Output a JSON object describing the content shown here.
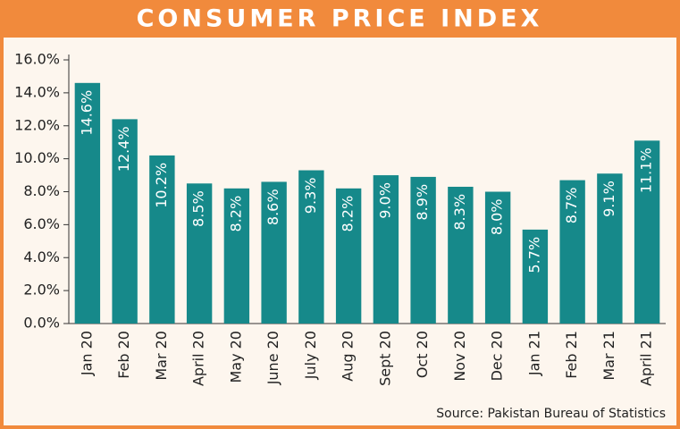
{
  "chart_data": {
    "type": "bar",
    "title": "CONSUMER PRICE INDEX",
    "categories": [
      "Jan 20",
      "Feb 20",
      "Mar 20",
      "April 20",
      "May 20",
      "June 20",
      "July 20",
      "Aug 20",
      "Sept 20",
      "Oct 20",
      "Nov 20",
      "Dec 20",
      "Jan 21",
      "Feb 21",
      "Mar 21",
      "April 21"
    ],
    "values": [
      14.6,
      12.4,
      10.2,
      8.5,
      8.2,
      8.6,
      9.3,
      8.2,
      9.0,
      8.9,
      8.3,
      8.0,
      5.7,
      8.7,
      9.1,
      11.1
    ],
    "value_labels": [
      "14.6%",
      "12.4%",
      "10.2%",
      "8.5%",
      "8.2%",
      "8.6%",
      "9.3%",
      "8.2%",
      "9.0%",
      "8.9%",
      "8.3%",
      "8.0%",
      "5.7%",
      "8.7%",
      "9.1%",
      "11.1%"
    ],
    "color": "#16898a",
    "ylim": [
      0,
      16
    ],
    "yticks": [
      {
        "value": 0,
        "label": "0.0%"
      },
      {
        "value": 2,
        "label": "2.0%"
      },
      {
        "value": 4,
        "label": "4.0%"
      },
      {
        "value": 6,
        "label": "6.0%"
      },
      {
        "value": 8,
        "label": "8.0%"
      },
      {
        "value": 10,
        "label": "10.0%"
      },
      {
        "value": 12,
        "label": "12.0%"
      },
      {
        "value": 14,
        "label": "14.0%"
      },
      {
        "value": 16,
        "label": "16.0%"
      }
    ],
    "source": "Source: Pakistan Bureau of Statistics"
  }
}
